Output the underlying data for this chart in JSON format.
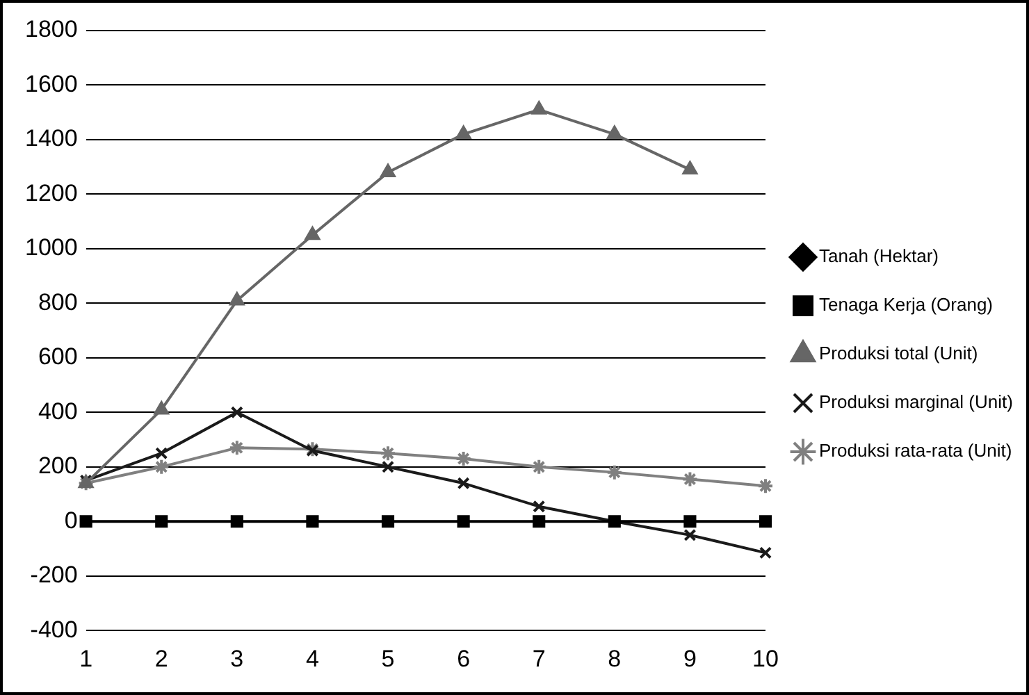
{
  "chart_data": {
    "type": "line",
    "categories": [
      "1",
      "2",
      "3",
      "4",
      "5",
      "6",
      "7",
      "8",
      "9",
      "10"
    ],
    "ylim": [
      -400,
      1800
    ],
    "yticks": [
      -400,
      -200,
      0,
      200,
      400,
      600,
      800,
      1000,
      1200,
      1400,
      1600,
      1800
    ],
    "grid": "y",
    "legend": "right",
    "series": [
      {
        "name": "Tanah (Hektar)",
        "color": "#000000",
        "marker": "diamond",
        "values": [
          null,
          null,
          null,
          null,
          null,
          null,
          null,
          null,
          null,
          null
        ]
      },
      {
        "name": "Tenaga Kerja (Orang)",
        "color": "#000000",
        "marker": "square",
        "values": [
          0,
          0,
          0,
          0,
          0,
          0,
          0,
          0,
          0,
          0
        ]
      },
      {
        "name": "Produksi total (Unit)",
        "color": "#666666",
        "marker": "triangle",
        "values": [
          140,
          410,
          810,
          1050,
          1280,
          1420,
          1510,
          1420,
          1290,
          null
        ]
      },
      {
        "name": "Produksi marginal (Unit)",
        "color": "#1a1a1a",
        "marker": "cross",
        "values": [
          150,
          250,
          400,
          260,
          200,
          140,
          55,
          0,
          -50,
          -115
        ]
      },
      {
        "name": "Produksi rata-rata (Unit)",
        "color": "#808080",
        "marker": "cross",
        "values": [
          140,
          200,
          270,
          265,
          250,
          230,
          200,
          180,
          155,
          130
        ]
      }
    ]
  }
}
